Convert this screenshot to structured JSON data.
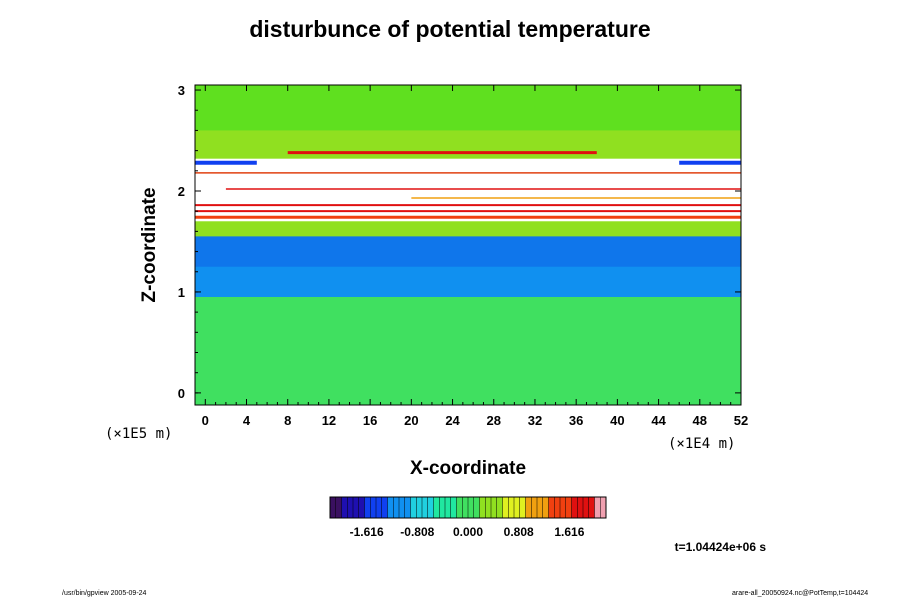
{
  "chart_data": {
    "type": "heatmap",
    "title": "disturbunce of potential temperature",
    "xlabel": "X-coordinate",
    "ylabel": "Z-coordinate",
    "x_unit": "(×1E4 m)",
    "y_unit": "(×1E5 m)",
    "x_ticks": [
      "0",
      "4",
      "8",
      "12",
      "16",
      "20",
      "24",
      "28",
      "32",
      "36",
      "40",
      "44",
      "48",
      "52"
    ],
    "y_ticks": [
      "0",
      "1",
      "2",
      "3"
    ],
    "xlim": [
      -1,
      52
    ],
    "ylim": [
      -0.12,
      3.05
    ],
    "colorbar": {
      "range": [
        -2.2,
        2.2
      ],
      "tick_labels": [
        "-1.616",
        "-0.808",
        "0.000",
        "0.808",
        "1.616"
      ],
      "colors": [
        "#3a1060",
        "#1e0fb0",
        "#1040f0",
        "#1090f0",
        "#20d0e0",
        "#20e8a0",
        "#40e060",
        "#90e020",
        "#e0f020",
        "#f0a010",
        "#f04010",
        "#e01010",
        "#f0a0b0"
      ]
    },
    "layers": [
      {
        "z_range": [
          0.95,
          3.05
        ],
        "value_description": "upper region",
        "level": 0.35
      },
      {
        "z_range": [
          1.55,
          0.95
        ],
        "value_description": "lower-middle band",
        "level": -0.95
      },
      {
        "z_range": [
          -0.12,
          0.95
        ],
        "value_description": "lower region",
        "level": 0.0
      }
    ],
    "time_label": "t=1.04424e+06 s"
  },
  "footer": {
    "left": "/usr/bin/gpview 2005-09-24",
    "right": "arare-all_20050924.nc@PotTemp,t=104424"
  }
}
